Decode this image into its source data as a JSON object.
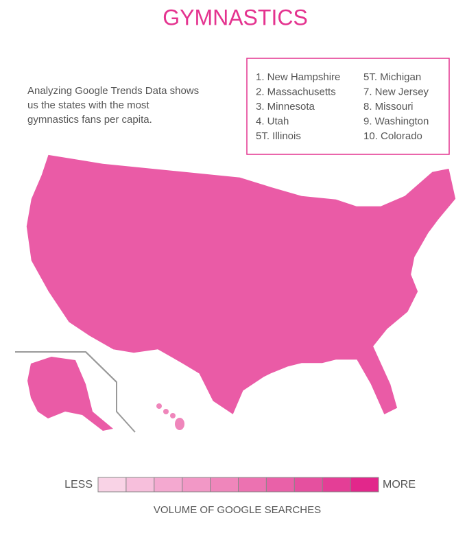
{
  "header": {
    "title": "GYMNASTICS"
  },
  "description": [
    "Analyzing Google Trends Data shows",
    "us the states with the most",
    "gymnastics fans per capita."
  ],
  "ranking": {
    "columns": [
      [
        "1. New Hampshire",
        "2. Massachusetts",
        "3. Minnesota",
        "4. Utah",
        "5T. Illinois"
      ],
      [
        "5T. Michigan",
        "7. New Jersey",
        "8. Missouri",
        "9. Washington",
        "10. Colorado"
      ]
    ]
  },
  "map": {
    "fill": "#ea5ba6",
    "border": "#999999"
  },
  "legend": {
    "low_label": "LESS",
    "high_label": "MORE",
    "caption": "VOLUME OF GOOGLE SEARCHES",
    "colors": [
      "#f9d3e6",
      "#f7bfdc",
      "#f4a9d0",
      "#f298c6",
      "#ef86bb",
      "#ec72b1",
      "#e961a8",
      "#e5509f",
      "#e43e96",
      "#e2278b"
    ]
  }
}
